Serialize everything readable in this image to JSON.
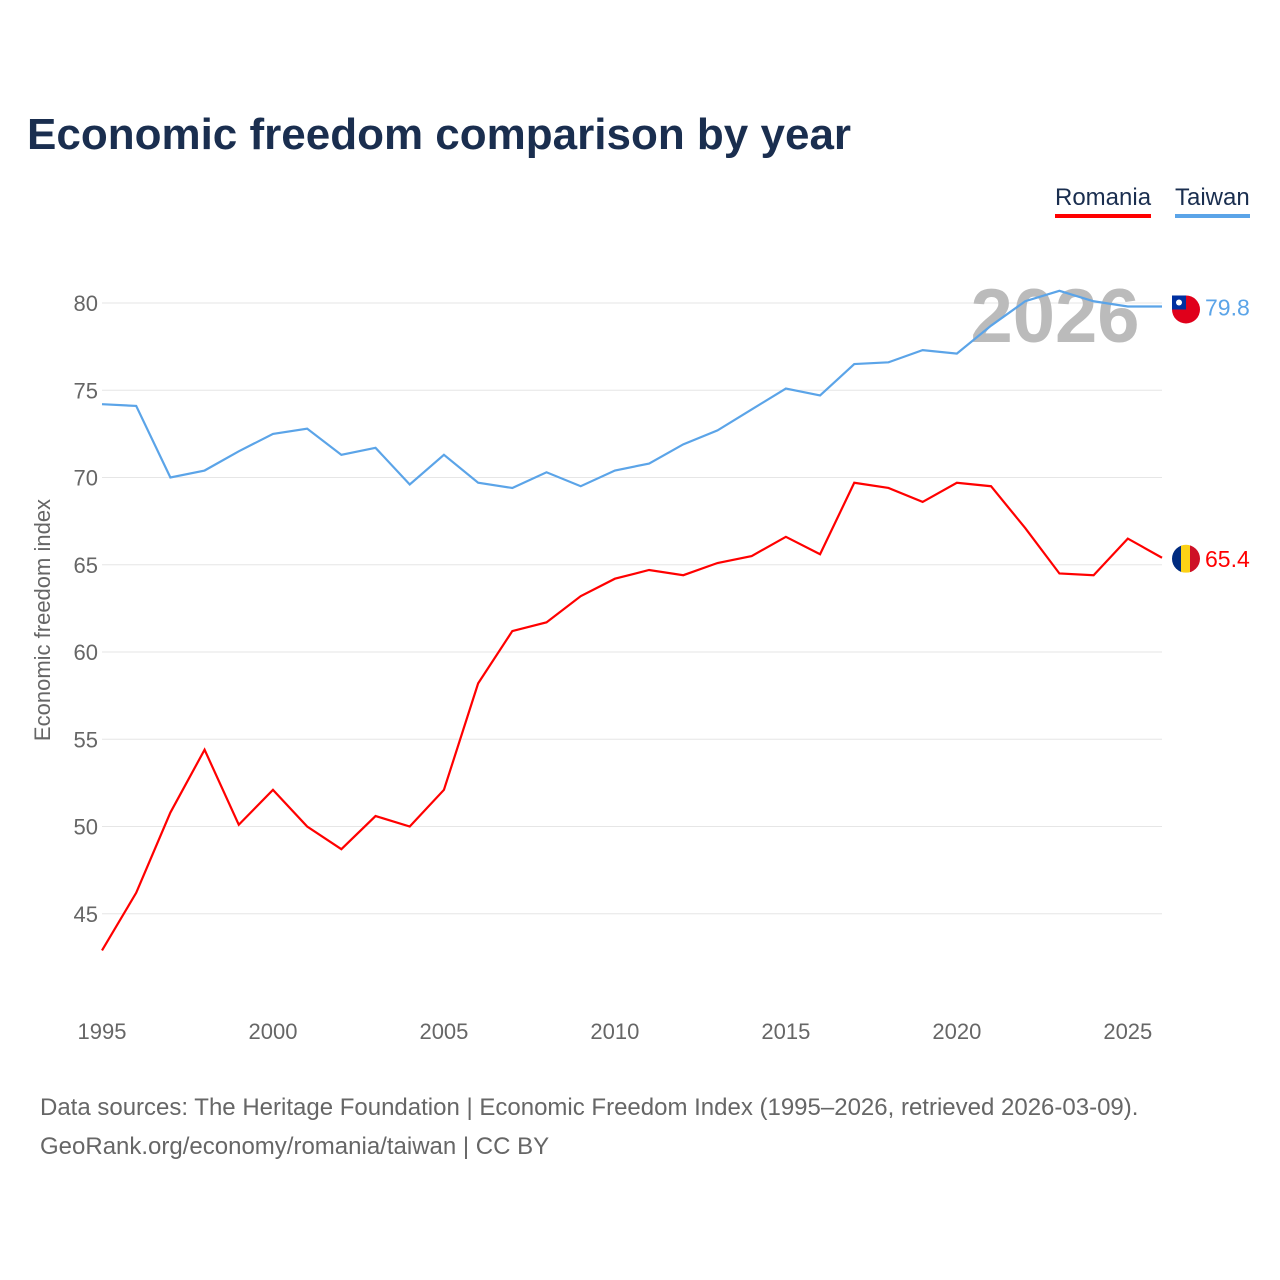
{
  "title": "Economic freedom comparison by year",
  "legend": [
    "Romania",
    "Taiwan"
  ],
  "source_line1": "Data sources: The Heritage Foundation | Economic Freedom Index (1995–2026, retrieved 2026-03-09).",
  "source_line2": "GeoRank.org/economy/romania/taiwan | CC BY",
  "year_watermark": "2026",
  "colors": {
    "Romania": "#ff0000",
    "Taiwan": "#5ba4e8"
  },
  "chart_data": {
    "type": "line",
    "title": "Economic freedom comparison by year",
    "xlabel": "",
    "ylabel": "Economic freedom index",
    "x": [
      1995,
      1996,
      1997,
      1998,
      1999,
      2000,
      2001,
      2002,
      2003,
      2004,
      2005,
      2006,
      2007,
      2008,
      2009,
      2010,
      2011,
      2012,
      2013,
      2014,
      2015,
      2016,
      2017,
      2018,
      2019,
      2020,
      2021,
      2022,
      2023,
      2024,
      2025,
      2026
    ],
    "xticks": [
      1995,
      2000,
      2005,
      2010,
      2015,
      2020,
      2025
    ],
    "yticks": [
      45,
      50,
      55,
      60,
      65,
      70,
      75,
      80
    ],
    "ylim": [
      41,
      83
    ],
    "xlim": [
      1995,
      2026
    ],
    "legend_position": "top-right",
    "series": [
      {
        "name": "Romania",
        "end_label": "65.4",
        "values": [
          42.9,
          46.2,
          50.8,
          54.4,
          50.1,
          52.1,
          50.0,
          48.7,
          50.6,
          50.0,
          52.1,
          58.2,
          61.2,
          61.7,
          63.2,
          64.2,
          64.7,
          64.4,
          65.1,
          65.5,
          66.6,
          65.6,
          69.7,
          69.4,
          68.6,
          69.7,
          69.5,
          67.1,
          64.5,
          64.4,
          66.5,
          65.4
        ]
      },
      {
        "name": "Taiwan",
        "end_label": "79.8",
        "values": [
          74.2,
          74.1,
          70.0,
          70.4,
          71.5,
          72.5,
          72.8,
          71.3,
          71.7,
          69.6,
          71.3,
          69.7,
          69.4,
          70.3,
          69.5,
          70.4,
          70.8,
          71.9,
          72.7,
          73.9,
          75.1,
          74.7,
          76.5,
          76.6,
          77.3,
          77.1,
          78.7,
          80.1,
          80.7,
          80.1,
          79.8,
          79.8
        ]
      }
    ]
  }
}
